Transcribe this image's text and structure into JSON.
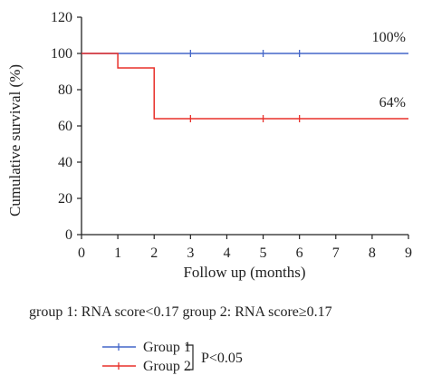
{
  "chart_data": {
    "type": "line",
    "step": true,
    "xlabel": "Follow up (months)",
    "ylabel": "Cumulative survival (%)",
    "xlim": [
      0,
      9
    ],
    "ylim": [
      0,
      120
    ],
    "xticks": [
      0,
      1,
      2,
      3,
      4,
      5,
      6,
      7,
      8,
      9
    ],
    "yticks": [
      0,
      20,
      40,
      60,
      80,
      100,
      120
    ],
    "grid": false,
    "series": [
      {
        "name": "Group 1",
        "color": "#4466c8",
        "steps": [
          [
            0,
            100
          ],
          [
            9,
            100
          ]
        ],
        "censored_x": [
          3,
          5,
          6
        ],
        "end_label": "100%"
      },
      {
        "name": "Group 2",
        "color": "#e8302a",
        "steps": [
          [
            0,
            100
          ],
          [
            1,
            92
          ],
          [
            2,
            64
          ],
          [
            9,
            64
          ]
        ],
        "censored_x": [
          3,
          5,
          6
        ],
        "end_label": "64%"
      }
    ],
    "caption": "group 1: RNA score<0.17 group 2: RNA score≥0.17",
    "legend_position": "bottom-left",
    "significance": "P<0.05"
  }
}
